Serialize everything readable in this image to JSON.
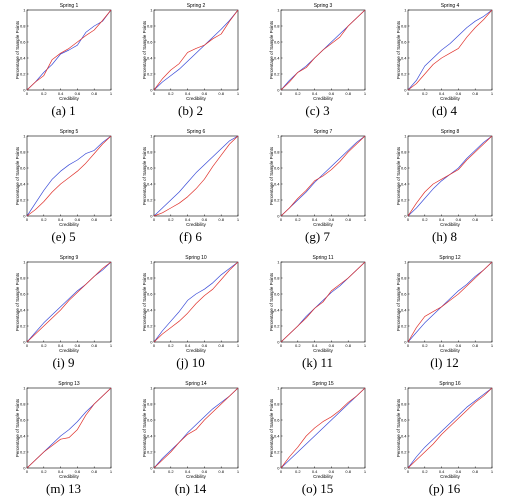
{
  "figure": {
    "captions": [
      "(a) 1",
      "(b) 2",
      "(c) 3",
      "(d) 4",
      "(e) 5",
      "(f) 6",
      "(g) 7",
      "(h) 8",
      "(i) 9",
      "(j) 10",
      "(k) 11",
      "(l) 12",
      "(m) 13",
      "(n) 14",
      "(o) 15",
      "(p) 16"
    ]
  },
  "colors": {
    "series_a": "#3a4bd8",
    "series_b": "#e0302a",
    "axis": "#000000"
  },
  "chart_data": [
    {
      "type": "line",
      "title": "Spring 1",
      "xlabel": "Credibility",
      "ylabel": "Percentage of Sample Points",
      "xlim": [
        0,
        1
      ],
      "ylim": [
        0,
        1
      ],
      "xticks": [
        "0",
        "0.2",
        "0.4",
        "0.6",
        "0.8",
        "1"
      ],
      "x": [
        0,
        0.1,
        0.2,
        0.3,
        0.4,
        0.5,
        0.6,
        0.7,
        0.8,
        0.9,
        1
      ],
      "series": [
        {
          "values": [
            0,
            0.1,
            0.22,
            0.32,
            0.45,
            0.5,
            0.56,
            0.72,
            0.8,
            0.86,
            1
          ]
        },
        {
          "values": [
            0,
            0.1,
            0.18,
            0.38,
            0.46,
            0.52,
            0.6,
            0.68,
            0.75,
            0.87,
            1
          ]
        }
      ]
    },
    {
      "type": "line",
      "title": "Spring 2",
      "xlabel": "Credibility",
      "ylabel": "Percentage of Sample Points",
      "xlim": [
        0,
        1
      ],
      "ylim": [
        0,
        1
      ],
      "xticks": [
        "0",
        "0.2",
        "0.4",
        "0.6",
        "0.8",
        "1"
      ],
      "x": [
        0,
        0.1,
        0.2,
        0.3,
        0.4,
        0.5,
        0.6,
        0.7,
        0.8,
        0.9,
        1
      ],
      "series": [
        {
          "values": [
            0,
            0.1,
            0.18,
            0.26,
            0.36,
            0.46,
            0.56,
            0.66,
            0.76,
            0.87,
            1
          ]
        },
        {
          "values": [
            0,
            0.14,
            0.25,
            0.33,
            0.47,
            0.52,
            0.56,
            0.64,
            0.7,
            0.86,
            1
          ]
        }
      ]
    },
    {
      "type": "line",
      "title": "Spring 3",
      "xlabel": "Credibility",
      "ylabel": "Percentage of Sample Points",
      "xlim": [
        0,
        1
      ],
      "ylim": [
        0,
        1
      ],
      "xticks": [
        "0",
        "0.2",
        "0.4",
        "0.6",
        "0.8",
        "1"
      ],
      "x": [
        0,
        0.1,
        0.2,
        0.3,
        0.4,
        0.5,
        0.6,
        0.7,
        0.8,
        0.9,
        1
      ],
      "series": [
        {
          "values": [
            0,
            0.12,
            0.22,
            0.3,
            0.4,
            0.5,
            0.6,
            0.7,
            0.8,
            0.9,
            1
          ]
        },
        {
          "values": [
            0,
            0.1,
            0.22,
            0.28,
            0.4,
            0.5,
            0.58,
            0.66,
            0.8,
            0.9,
            1
          ]
        }
      ]
    },
    {
      "type": "line",
      "title": "Spring 4",
      "xlabel": "Credibility",
      "ylabel": "Percentage of Sample Points",
      "xlim": [
        0,
        1
      ],
      "ylim": [
        0,
        1
      ],
      "xticks": [
        "0",
        "0.2",
        "0.4",
        "0.6",
        "0.8",
        "1"
      ],
      "x": [
        0,
        0.1,
        0.2,
        0.3,
        0.4,
        0.5,
        0.6,
        0.7,
        0.8,
        0.9,
        1
      ],
      "series": [
        {
          "values": [
            0,
            0.12,
            0.3,
            0.4,
            0.5,
            0.58,
            0.68,
            0.78,
            0.86,
            0.92,
            1
          ]
        },
        {
          "values": [
            0,
            0.08,
            0.2,
            0.32,
            0.4,
            0.46,
            0.52,
            0.66,
            0.78,
            0.88,
            1
          ]
        }
      ]
    },
    {
      "type": "line",
      "title": "Spring 5",
      "xlabel": "Credibility",
      "ylabel": "Percentage of Sample Points",
      "xlim": [
        0,
        1
      ],
      "ylim": [
        0,
        1
      ],
      "xticks": [
        "0",
        "0.2",
        "0.4",
        "0.6",
        "0.8",
        "1"
      ],
      "x": [
        0,
        0.1,
        0.2,
        0.3,
        0.4,
        0.5,
        0.6,
        0.7,
        0.8,
        0.9,
        1
      ],
      "series": [
        {
          "values": [
            0,
            0.16,
            0.32,
            0.46,
            0.56,
            0.64,
            0.7,
            0.78,
            0.82,
            0.92,
            1
          ]
        },
        {
          "values": [
            0,
            0.08,
            0.18,
            0.3,
            0.4,
            0.48,
            0.56,
            0.66,
            0.78,
            0.9,
            1
          ]
        }
      ]
    },
    {
      "type": "line",
      "title": "Spring 6",
      "xlabel": "Credibility",
      "ylabel": "Percentage of Sample Points",
      "xlim": [
        0,
        1
      ],
      "ylim": [
        0,
        1
      ],
      "xticks": [
        "0",
        "0.2",
        "0.4",
        "0.6",
        "0.8",
        "1"
      ],
      "x": [
        0,
        0.1,
        0.2,
        0.3,
        0.4,
        0.5,
        0.6,
        0.7,
        0.8,
        0.9,
        1
      ],
      "series": [
        {
          "values": [
            0,
            0.1,
            0.2,
            0.3,
            0.42,
            0.54,
            0.64,
            0.74,
            0.84,
            0.94,
            1
          ]
        },
        {
          "values": [
            0,
            0.04,
            0.1,
            0.16,
            0.24,
            0.34,
            0.46,
            0.62,
            0.76,
            0.9,
            1
          ]
        }
      ]
    },
    {
      "type": "line",
      "title": "Spring 7",
      "xlabel": "Credibility",
      "ylabel": "Percentage of Sample Points",
      "xlim": [
        0,
        1
      ],
      "ylim": [
        0,
        1
      ],
      "xticks": [
        "0",
        "0.2",
        "0.4",
        "0.6",
        "0.8",
        "1"
      ],
      "x": [
        0,
        0.1,
        0.2,
        0.3,
        0.4,
        0.5,
        0.6,
        0.7,
        0.8,
        0.9,
        1
      ],
      "series": [
        {
          "values": [
            0,
            0.1,
            0.2,
            0.3,
            0.42,
            0.52,
            0.62,
            0.72,
            0.82,
            0.92,
            1
          ]
        },
        {
          "values": [
            0,
            0.1,
            0.22,
            0.32,
            0.44,
            0.5,
            0.58,
            0.68,
            0.8,
            0.9,
            1
          ]
        }
      ]
    },
    {
      "type": "line",
      "title": "Spring 8",
      "xlabel": "Credibility",
      "ylabel": "Percentage of Sample Points",
      "xlim": [
        0,
        1
      ],
      "ylim": [
        0,
        1
      ],
      "xticks": [
        "0",
        "0.2",
        "0.4",
        "0.6",
        "0.8",
        "1"
      ],
      "x": [
        0,
        0.1,
        0.2,
        0.3,
        0.4,
        0.5,
        0.6,
        0.7,
        0.8,
        0.9,
        1
      ],
      "series": [
        {
          "values": [
            0,
            0.1,
            0.22,
            0.34,
            0.44,
            0.52,
            0.6,
            0.72,
            0.82,
            0.92,
            1
          ]
        },
        {
          "values": [
            0,
            0.16,
            0.3,
            0.4,
            0.46,
            0.52,
            0.58,
            0.7,
            0.8,
            0.9,
            1
          ]
        }
      ]
    },
    {
      "type": "line",
      "title": "Spring 9",
      "xlabel": "Credibility",
      "ylabel": "Percentage of Sample Points",
      "xlim": [
        0,
        1
      ],
      "ylim": [
        0,
        1
      ],
      "xticks": [
        "0",
        "0.2",
        "0.4",
        "0.6",
        "0.8",
        "1"
      ],
      "x": [
        0,
        0.1,
        0.2,
        0.3,
        0.4,
        0.5,
        0.6,
        0.7,
        0.8,
        0.9,
        1
      ],
      "series": [
        {
          "values": [
            0,
            0.12,
            0.24,
            0.34,
            0.44,
            0.54,
            0.64,
            0.72,
            0.82,
            0.9,
            1
          ]
        },
        {
          "values": [
            0,
            0.1,
            0.2,
            0.3,
            0.4,
            0.52,
            0.62,
            0.72,
            0.82,
            0.92,
            1
          ]
        }
      ]
    },
    {
      "type": "line",
      "title": "Spring 10",
      "xlabel": "Credibility",
      "ylabel": "Percentage of Sample Points",
      "xlim": [
        0,
        1
      ],
      "ylim": [
        0,
        1
      ],
      "xticks": [
        "0",
        "0.2",
        "0.4",
        "0.6",
        "0.8",
        "1"
      ],
      "x": [
        0,
        0.1,
        0.2,
        0.3,
        0.4,
        0.5,
        0.6,
        0.7,
        0.8,
        0.9,
        1
      ],
      "series": [
        {
          "values": [
            0,
            0.14,
            0.26,
            0.38,
            0.52,
            0.6,
            0.66,
            0.74,
            0.84,
            0.92,
            1
          ]
        },
        {
          "values": [
            0,
            0.1,
            0.18,
            0.26,
            0.36,
            0.48,
            0.58,
            0.66,
            0.78,
            0.9,
            1
          ]
        }
      ]
    },
    {
      "type": "line",
      "title": "Spring 11",
      "xlabel": "Credibility",
      "ylabel": "Percentage of Sample Points",
      "xlim": [
        0,
        1
      ],
      "ylim": [
        0,
        1
      ],
      "xticks": [
        "0",
        "0.2",
        "0.4",
        "0.6",
        "0.8",
        "1"
      ],
      "x": [
        0,
        0.1,
        0.2,
        0.3,
        0.4,
        0.5,
        0.6,
        0.7,
        0.8,
        0.9,
        1
      ],
      "series": [
        {
          "values": [
            0,
            0.1,
            0.2,
            0.32,
            0.42,
            0.52,
            0.62,
            0.7,
            0.8,
            0.9,
            1
          ]
        },
        {
          "values": [
            0,
            0.1,
            0.2,
            0.3,
            0.42,
            0.5,
            0.64,
            0.72,
            0.8,
            0.9,
            1
          ]
        }
      ]
    },
    {
      "type": "line",
      "title": "Spring 12",
      "xlabel": "Credibility",
      "ylabel": "Percentage of Sample Points",
      "xlim": [
        0,
        1
      ],
      "ylim": [
        0,
        1
      ],
      "xticks": [
        "0",
        "0.2",
        "0.4",
        "0.6",
        "0.8",
        "1"
      ],
      "x": [
        0,
        0.1,
        0.2,
        0.3,
        0.4,
        0.5,
        0.6,
        0.7,
        0.8,
        0.9,
        1
      ],
      "series": [
        {
          "values": [
            0,
            0.12,
            0.24,
            0.34,
            0.44,
            0.54,
            0.64,
            0.72,
            0.82,
            0.9,
            1
          ]
        },
        {
          "values": [
            0,
            0.18,
            0.32,
            0.38,
            0.44,
            0.52,
            0.6,
            0.7,
            0.8,
            0.9,
            1
          ]
        }
      ]
    },
    {
      "type": "line",
      "title": "Spring 13",
      "xlabel": "Credibility",
      "ylabel": "Percentage of Sample Points",
      "xlim": [
        0,
        1
      ],
      "ylim": [
        0,
        1
      ],
      "xticks": [
        "0",
        "0.2",
        "0.4",
        "0.6",
        "0.8",
        "1"
      ],
      "x": [
        0,
        0.1,
        0.2,
        0.3,
        0.4,
        0.5,
        0.6,
        0.7,
        0.8,
        0.9,
        1
      ],
      "series": [
        {
          "values": [
            0,
            0.1,
            0.2,
            0.3,
            0.4,
            0.48,
            0.58,
            0.7,
            0.8,
            0.9,
            1
          ]
        },
        {
          "values": [
            0,
            0.1,
            0.2,
            0.28,
            0.36,
            0.38,
            0.48,
            0.66,
            0.8,
            0.9,
            1
          ]
        }
      ]
    },
    {
      "type": "line",
      "title": "Spring 14",
      "xlabel": "Credibility",
      "ylabel": "Percentage of Sample Points",
      "xlim": [
        0,
        1
      ],
      "ylim": [
        0,
        1
      ],
      "xticks": [
        "0",
        "0.2",
        "0.4",
        "0.6",
        "0.8",
        "1"
      ],
      "x": [
        0,
        0.1,
        0.2,
        0.3,
        0.4,
        0.5,
        0.6,
        0.7,
        0.8,
        0.9,
        1
      ],
      "series": [
        {
          "values": [
            0,
            0.12,
            0.22,
            0.32,
            0.44,
            0.54,
            0.64,
            0.74,
            0.82,
            0.9,
            1
          ]
        },
        {
          "values": [
            0,
            0.1,
            0.2,
            0.32,
            0.42,
            0.48,
            0.6,
            0.7,
            0.8,
            0.9,
            1
          ]
        }
      ]
    },
    {
      "type": "line",
      "title": "Spring 15",
      "xlabel": "Credibility",
      "ylabel": "Percentage of Sample Points",
      "xlim": [
        0,
        1
      ],
      "ylim": [
        0,
        1
      ],
      "xticks": [
        "0",
        "0.2",
        "0.4",
        "0.6",
        "0.8",
        "1"
      ],
      "x": [
        0,
        0.1,
        0.2,
        0.3,
        0.4,
        0.5,
        0.6,
        0.7,
        0.8,
        0.9,
        1
      ],
      "series": [
        {
          "values": [
            0,
            0.1,
            0.2,
            0.3,
            0.4,
            0.5,
            0.6,
            0.7,
            0.8,
            0.9,
            1
          ]
        },
        {
          "values": [
            0,
            0.14,
            0.26,
            0.4,
            0.5,
            0.58,
            0.64,
            0.72,
            0.82,
            0.9,
            1
          ]
        }
      ]
    },
    {
      "type": "line",
      "title": "Spring 16",
      "xlabel": "Credibility",
      "ylabel": "Percentage of Sample Points",
      "xlim": [
        0,
        1
      ],
      "ylim": [
        0,
        1
      ],
      "xticks": [
        "0",
        "0.2",
        "0.4",
        "0.6",
        "0.8",
        "1"
      ],
      "x": [
        0,
        0.1,
        0.2,
        0.3,
        0.4,
        0.5,
        0.6,
        0.7,
        0.8,
        0.9,
        1
      ],
      "series": [
        {
          "values": [
            0,
            0.14,
            0.26,
            0.36,
            0.46,
            0.56,
            0.66,
            0.76,
            0.84,
            0.92,
            1
          ]
        },
        {
          "values": [
            0,
            0.1,
            0.2,
            0.3,
            0.42,
            0.52,
            0.62,
            0.72,
            0.82,
            0.9,
            1
          ]
        }
      ]
    }
  ]
}
